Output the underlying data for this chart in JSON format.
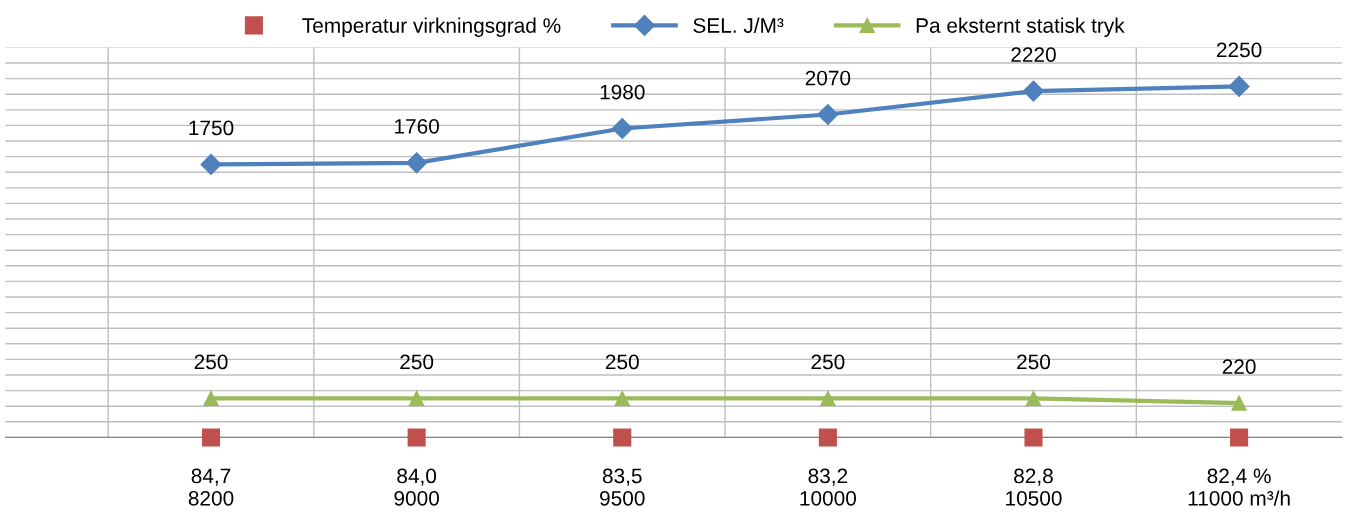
{
  "chart_data": {
    "type": "line",
    "categories": [
      "84,7\n8200",
      "84,0\n9000",
      "83,5\n9500",
      "83,2\n10000",
      "82,8\n10500",
      "82,4 %\n11000 m³/h"
    ],
    "series": [
      {
        "name": "Temperatur virkningsgrad %",
        "type": "scatter",
        "marker": "square",
        "color": "#c0504d",
        "values": [
          0,
          0,
          0,
          0,
          0,
          0
        ]
      },
      {
        "name": "SEL. J/M³",
        "marker": "diamond",
        "color": "#4f81bd",
        "values": [
          1750,
          1760,
          1980,
          2070,
          2220,
          2250
        ],
        "data_labels": true
      },
      {
        "name": "Pa eksternt statisk tryk",
        "marker": "triangle",
        "color": "#9bbb59",
        "values": [
          250,
          250,
          250,
          250,
          250,
          220
        ],
        "data_labels": true
      }
    ],
    "ylim": [
      0,
      2500
    ],
    "yticks": [
      {
        "value": 0,
        "label": null
      },
      {
        "value": 100,
        "label": null
      },
      {
        "value": 200,
        "label": null
      },
      {
        "value": 300,
        "label": null
      },
      {
        "value": 400,
        "label": null
      },
      {
        "value": 500,
        "label": null
      },
      {
        "value": 600,
        "label": null
      },
      {
        "value": 700,
        "label": null
      },
      {
        "value": 800,
        "label": null
      },
      {
        "value": 900,
        "label": null
      },
      {
        "value": 1000,
        "label": null
      },
      {
        "value": 1100,
        "label": null
      },
      {
        "value": 1200,
        "label": null
      },
      {
        "value": 1300,
        "label": null
      },
      {
        "value": 1400,
        "label": null
      },
      {
        "value": 1500,
        "label": null
      },
      {
        "value": 1600,
        "label": null
      },
      {
        "value": 1700,
        "label": null
      },
      {
        "value": 1800,
        "label": null
      },
      {
        "value": 1900,
        "label": null
      },
      {
        "value": 2000,
        "label": null
      },
      {
        "value": 2100,
        "label": null
      },
      {
        "value": 2200,
        "label": null
      },
      {
        "value": 2300,
        "label": null
      },
      {
        "value": 2400,
        "label": null
      },
      {
        "value": 2500,
        "label": null
      }
    ],
    "tick_labels": "x",
    "grid": true,
    "legend": "top"
  }
}
